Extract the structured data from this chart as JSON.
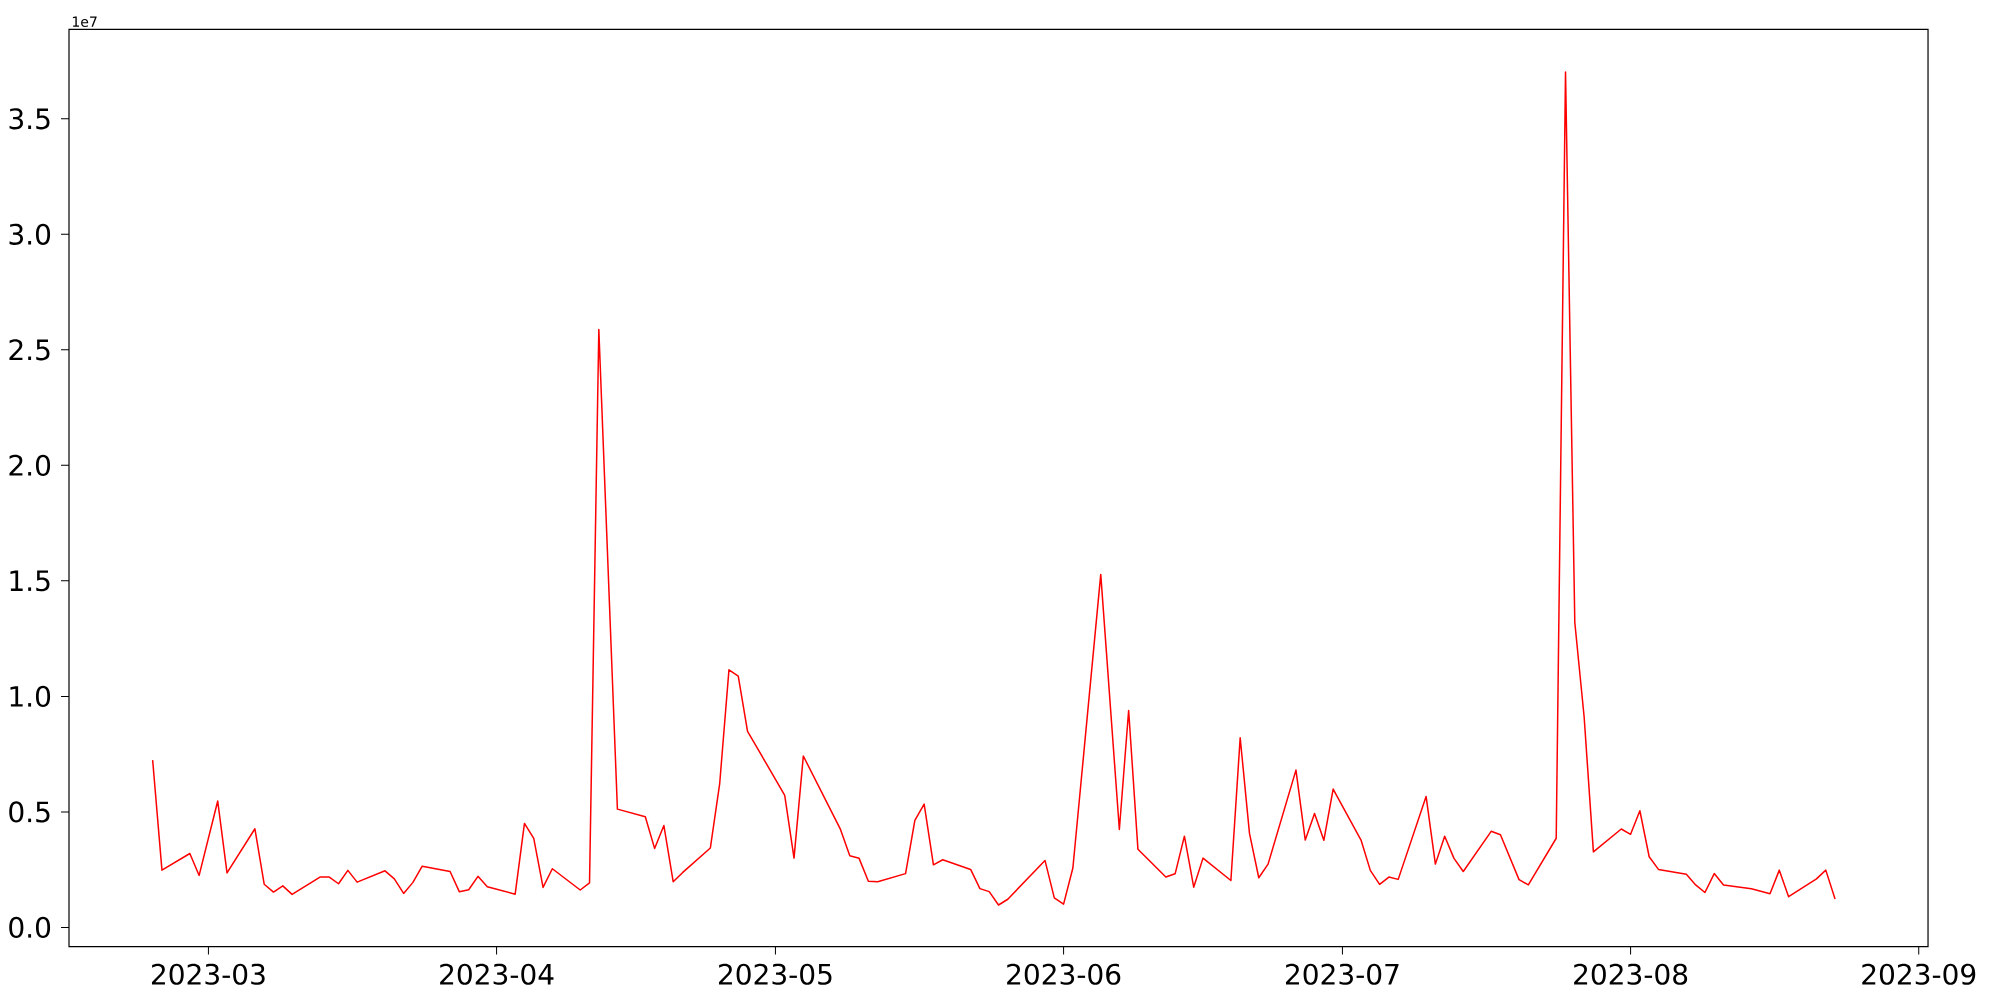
{
  "chart_data": {
    "type": "line",
    "x": [
      "2023-02-23",
      "2023-02-24",
      "2023-02-27",
      "2023-02-28",
      "2023-03-02",
      "2023-03-03",
      "2023-03-06",
      "2023-03-07",
      "2023-03-08",
      "2023-03-09",
      "2023-03-10",
      "2023-03-13",
      "2023-03-14",
      "2023-03-15",
      "2023-03-16",
      "2023-03-17",
      "2023-03-20",
      "2023-03-21",
      "2023-03-22",
      "2023-03-23",
      "2023-03-24",
      "2023-03-27",
      "2023-03-28",
      "2023-03-29",
      "2023-03-30",
      "2023-03-31",
      "2023-04-03",
      "2023-04-04",
      "2023-04-05",
      "2023-04-06",
      "2023-04-07",
      "2023-04-10",
      "2023-04-11",
      "2023-04-12",
      "2023-04-14",
      "2023-04-17",
      "2023-04-18",
      "2023-04-19",
      "2023-04-20",
      "2023-04-21",
      "2023-04-24",
      "2023-04-25",
      "2023-04-26",
      "2023-04-27",
      "2023-04-28",
      "2023-05-02",
      "2023-05-03",
      "2023-05-04",
      "2023-05-08",
      "2023-05-09",
      "2023-05-10",
      "2023-05-11",
      "2023-05-12",
      "2023-05-15",
      "2023-05-16",
      "2023-05-17",
      "2023-05-18",
      "2023-05-19",
      "2023-05-22",
      "2023-05-23",
      "2023-05-24",
      "2023-05-25",
      "2023-05-26",
      "2023-05-30",
      "2023-05-31",
      "2023-06-01",
      "2023-06-02",
      "2023-06-05",
      "2023-06-07",
      "2023-06-08",
      "2023-06-09",
      "2023-06-12",
      "2023-06-13",
      "2023-06-14",
      "2023-06-15",
      "2023-06-16",
      "2023-06-19",
      "2023-06-20",
      "2023-06-21",
      "2023-06-22",
      "2023-06-23",
      "2023-06-26",
      "2023-06-27",
      "2023-06-28",
      "2023-06-29",
      "2023-06-30",
      "2023-07-03",
      "2023-07-04",
      "2023-07-05",
      "2023-07-06",
      "2023-07-07",
      "2023-07-10",
      "2023-07-11",
      "2023-07-12",
      "2023-07-13",
      "2023-07-14",
      "2023-07-17",
      "2023-07-18",
      "2023-07-20",
      "2023-07-21",
      "2023-07-24",
      "2023-07-25",
      "2023-07-26",
      "2023-07-27",
      "2023-07-28",
      "2023-07-31",
      "2023-08-01",
      "2023-08-02",
      "2023-08-03",
      "2023-08-04",
      "2023-08-07",
      "2023-08-08",
      "2023-08-09",
      "2023-08-10",
      "2023-08-11",
      "2023-08-14",
      "2023-08-16",
      "2023-08-17",
      "2023-08-18",
      "2023-08-21",
      "2023-08-22",
      "2023-08-23"
    ],
    "series": [
      {
        "color": "#ff0000",
        "values": [
          0.724,
          0.248,
          0.32,
          0.225,
          0.547,
          0.236,
          0.427,
          0.187,
          0.153,
          0.18,
          0.143,
          0.218,
          0.218,
          0.189,
          0.247,
          0.196,
          0.245,
          0.21,
          0.147,
          0.195,
          0.265,
          0.242,
          0.154,
          0.163,
          0.221,
          0.176,
          0.144,
          0.45,
          0.385,
          0.173,
          0.254,
          0.162,
          0.193,
          2.588,
          0.512,
          0.479,
          0.342,
          0.441,
          0.198,
          0.237,
          0.344,
          0.621,
          1.115,
          1.088,
          0.849,
          0.572,
          0.3,
          0.742,
          0.424,
          0.31,
          0.299,
          0.2,
          0.198,
          0.233,
          0.463,
          0.534,
          0.271,
          0.293,
          0.251,
          0.168,
          0.155,
          0.097,
          0.122,
          0.29,
          0.128,
          0.101,
          0.257,
          1.528,
          0.424,
          0.939,
          0.338,
          0.218,
          0.232,
          0.395,
          0.174,
          0.3,
          0.203,
          0.821,
          0.407,
          0.215,
          0.274,
          0.681,
          0.378,
          0.493,
          0.377,
          0.599,
          0.378,
          0.247,
          0.186,
          0.218,
          0.208,
          0.567,
          0.274,
          0.395,
          0.299,
          0.242,
          0.416,
          0.401,
          0.207,
          0.184,
          0.386,
          3.703,
          1.32,
          0.913,
          0.327,
          0.426,
          0.403,
          0.505,
          0.306,
          0.251,
          0.23,
          0.184,
          0.151,
          0.233,
          0.184,
          0.167,
          0.146,
          0.248,
          0.133,
          0.21,
          0.248,
          0.123
        ]
      }
    ],
    "xlim": [
      "2023-02-14",
      "2023-09-02"
    ],
    "xticks": [
      "2023-03",
      "2023-04",
      "2023-05",
      "2023-06",
      "2023-07",
      "2023-08",
      "2023-09"
    ],
    "ylim": [
      -0.083,
      3.887
    ],
    "yticks": [
      {
        "value": 0,
        "label": "0.0"
      },
      0.5,
      {
        "value": 1,
        "label": "1.0"
      },
      1.5,
      {
        "value": 2,
        "label": "2.0"
      },
      2.5,
      {
        "value": 3,
        "label": "3.0"
      },
      3.5
    ],
    "annotations": [
      "1e7"
    ]
  }
}
